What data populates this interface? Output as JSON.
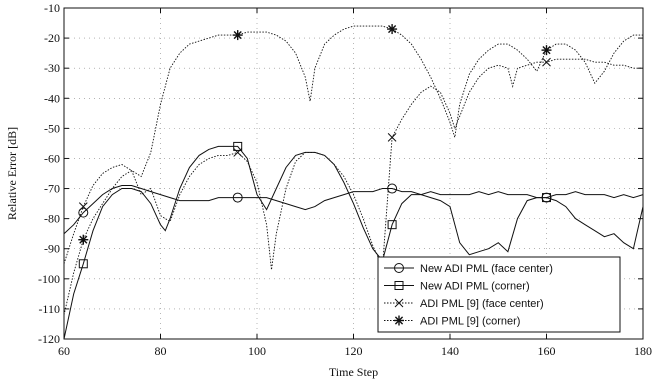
{
  "chart_data": {
    "type": "line",
    "title": "",
    "xlabel": "Time Step",
    "ylabel": "Relative Error [dB]",
    "xlim": [
      60,
      180
    ],
    "ylim": [
      -120,
      -10
    ],
    "xticks": [
      60,
      80,
      100,
      120,
      140,
      160,
      180
    ],
    "yticks": [
      -10,
      -20,
      -30,
      -40,
      -50,
      -60,
      -70,
      -80,
      -90,
      -100,
      -110,
      -120
    ],
    "grid": true,
    "legend_position": "bottom-right",
    "series": [
      {
        "name": "New ADI PML (face center)",
        "marker": "circle",
        "line": "solid",
        "marker_x": [
          64,
          96,
          128,
          160
        ],
        "x": [
          60,
          62,
          64,
          66,
          68,
          70,
          72,
          74,
          76,
          78,
          80,
          82,
          84,
          86,
          88,
          90,
          92,
          94,
          96,
          98,
          100,
          102,
          104,
          106,
          108,
          110,
          112,
          114,
          116,
          118,
          120,
          122,
          124,
          126,
          128,
          130,
          132,
          134,
          136,
          138,
          140,
          142,
          144,
          146,
          148,
          150,
          152,
          154,
          156,
          158,
          160,
          162,
          164,
          166,
          168,
          170,
          172,
          174,
          176,
          178,
          180
        ],
        "values": [
          -85,
          -82,
          -78,
          -75,
          -72,
          -70,
          -69,
          -69,
          -70,
          -71,
          -72,
          -73,
          -74,
          -74,
          -74,
          -74,
          -73,
          -73,
          -73,
          -73,
          -73,
          -73,
          -74,
          -75,
          -76,
          -77,
          -76,
          -74,
          -73,
          -72,
          -71,
          -71,
          -71,
          -70,
          -70,
          -71,
          -71,
          -72,
          -71,
          -72,
          -72,
          -72,
          -72,
          -71,
          -72,
          -71,
          -72,
          -72,
          -72,
          -73,
          -73,
          -72,
          -72,
          -71,
          -72,
          -72,
          -72,
          -73,
          -72,
          -73,
          -72
        ]
      },
      {
        "name": "New ADI PML (corner)",
        "marker": "square",
        "line": "solid",
        "marker_x": [
          64,
          96,
          128,
          160
        ],
        "x": [
          60,
          62,
          64,
          66,
          68,
          70,
          72,
          74,
          76,
          78,
          80,
          81,
          82,
          84,
          86,
          88,
          90,
          92,
          94,
          96,
          98,
          100,
          102,
          104,
          106,
          108,
          110,
          112,
          114,
          116,
          118,
          120,
          122,
          124,
          126,
          128,
          130,
          132,
          134,
          136,
          138,
          140,
          142,
          144,
          146,
          148,
          150,
          152,
          154,
          156,
          158,
          160,
          162,
          164,
          166,
          168,
          170,
          172,
          174,
          176,
          178,
          180
        ],
        "values": [
          -120,
          -105,
          -95,
          -84,
          -76,
          -72,
          -70,
          -70,
          -71,
          -75,
          -82,
          -84,
          -80,
          -70,
          -63,
          -59,
          -57,
          -56,
          -56,
          -56,
          -60,
          -72,
          -77,
          -70,
          -63,
          -59,
          -58,
          -58,
          -59,
          -62,
          -68,
          -75,
          -83,
          -90,
          -94,
          -82,
          -75,
          -72,
          -72,
          -73,
          -74,
          -76,
          -88,
          -92,
          -91,
          -90,
          -88,
          -91,
          -80,
          -74,
          -73,
          -73,
          -74,
          -76,
          -80,
          -82,
          -84,
          -86,
          -85,
          -88,
          -90,
          -76
        ]
      },
      {
        "name": "ADI PML [9] (face center)",
        "marker": "x",
        "line": "dotted",
        "marker_x": [
          64,
          96,
          128,
          160
        ],
        "x": [
          60,
          62,
          64,
          66,
          68,
          70,
          72,
          74,
          75,
          76,
          78,
          80,
          82,
          84,
          86,
          88,
          90,
          92,
          94,
          96,
          98,
          100,
          102,
          103,
          104,
          106,
          108,
          110,
          112,
          114,
          116,
          118,
          120,
          122,
          124,
          126,
          128,
          130,
          132,
          134,
          136,
          138,
          140,
          141,
          142,
          144,
          146,
          148,
          150,
          152,
          153,
          154,
          156,
          158,
          160,
          162,
          164,
          166,
          168,
          170,
          172,
          174,
          176,
          178,
          180
        ],
        "values": [
          -95,
          -85,
          -76,
          -69,
          -65,
          -63,
          -62,
          -64,
          -68,
          -72,
          -70,
          -79,
          -81,
          -72,
          -66,
          -62,
          -60,
          -59,
          -59,
          -58,
          -61,
          -68,
          -82,
          -97,
          -85,
          -70,
          -61,
          -58,
          -58,
          -59,
          -62,
          -66,
          -72,
          -80,
          -89,
          -96,
          -53,
          -47,
          -42,
          -38,
          -36,
          -38,
          -45,
          -50,
          -46,
          -38,
          -33,
          -30,
          -29,
          -30,
          -36,
          -30,
          -29,
          -28,
          -28,
          -27,
          -27,
          -27,
          -27,
          -28,
          -28,
          -29,
          -29,
          -30,
          -30
        ]
      },
      {
        "name": "ADI PML [9] (corner)",
        "marker": "asterisk",
        "line": "dotted",
        "marker_x": [
          64,
          96,
          128,
          160
        ],
        "x": [
          60,
          62,
          64,
          66,
          68,
          70,
          72,
          74,
          76,
          78,
          80,
          82,
          84,
          86,
          88,
          90,
          92,
          94,
          96,
          98,
          100,
          102,
          104,
          106,
          108,
          110,
          111,
          112,
          114,
          116,
          118,
          120,
          122,
          124,
          126,
          128,
          130,
          132,
          134,
          136,
          138,
          140,
          141,
          142,
          144,
          146,
          148,
          150,
          152,
          154,
          156,
          158,
          160,
          162,
          164,
          166,
          168,
          170,
          172,
          174,
          176,
          178,
          180
        ],
        "values": [
          -112,
          -98,
          -87,
          -80,
          -75,
          -70,
          -66,
          -64,
          -66,
          -58,
          -42,
          -30,
          -25,
          -22,
          -21,
          -20,
          -19,
          -19,
          -19,
          -18,
          -18,
          -18,
          -19,
          -21,
          -25,
          -33,
          -41,
          -30,
          -22,
          -19,
          -17,
          -16,
          -16,
          -16,
          -16,
          -17,
          -19,
          -22,
          -27,
          -33,
          -40,
          -48,
          -53,
          -42,
          -32,
          -27,
          -24,
          -22,
          -22,
          -24,
          -27,
          -31,
          -24,
          -22,
          -22,
          -24,
          -28,
          -35,
          -31,
          -25,
          -21,
          -19,
          -19
        ]
      }
    ]
  }
}
